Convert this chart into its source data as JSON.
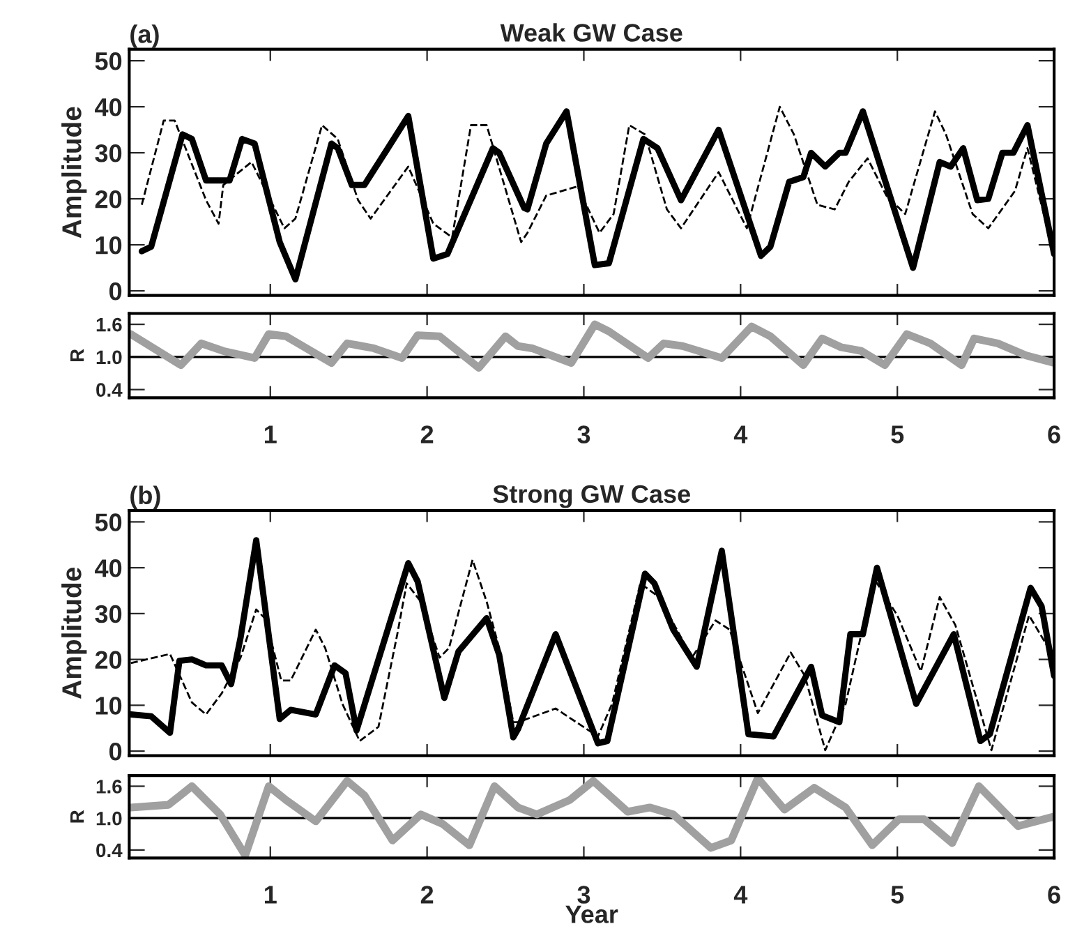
{
  "chart_data": [
    {
      "type": "line",
      "title": "Weak GW Case",
      "ylabel": "Amplitude",
      "annotations": [
        "(a)"
      ],
      "xlim": [
        0.1,
        6
      ],
      "xticks": [
        1,
        2,
        3,
        4,
        5,
        6
      ],
      "ylim": [
        -1,
        52.5
      ],
      "yticks": [
        0,
        10,
        20,
        30,
        40,
        50
      ],
      "tick_labels": "y",
      "series": [
        {
          "color": "#000000",
          "line_style": "solid",
          "x": [
            0.18,
            0.24,
            0.44,
            0.5,
            0.59,
            0.74,
            0.82,
            0.9,
            1.06,
            1.16,
            1.39,
            1.43,
            1.52,
            1.6,
            1.75,
            1.88,
            2.04,
            2.13,
            2.42,
            2.46,
            2.62,
            2.64,
            2.76,
            2.89,
            3.07,
            3.16,
            3.38,
            3.47,
            3.62,
            3.86,
            4.13,
            4.19,
            4.31,
            4.4,
            4.45,
            4.54,
            4.63,
            4.67,
            4.78,
            5.1,
            5.27,
            5.34,
            5.42,
            5.51,
            5.58,
            5.67,
            5.74,
            5.83,
            6.0
          ],
          "values": [
            8.6,
            9.6,
            34,
            33,
            24,
            24,
            33,
            32,
            10.6,
            2.5,
            32,
            31,
            23,
            23,
            31,
            38,
            7,
            8,
            31,
            30,
            18,
            17.7,
            32,
            39,
            5.6,
            6,
            33,
            31,
            19.7,
            35,
            7.6,
            9.6,
            23.7,
            24.7,
            30,
            27,
            30,
            30,
            39,
            5,
            28,
            27,
            31,
            19.7,
            20,
            30,
            30,
            36,
            8
          ]
        },
        {
          "color": "#000000",
          "line_style": "dashed",
          "x": [
            0.18,
            0.32,
            0.39,
            0.59,
            0.67,
            0.7,
            0.88,
            1.09,
            1.16,
            1.33,
            1.43,
            1.56,
            1.64,
            1.88,
            2.04,
            2.16,
            2.28,
            2.38,
            2.6,
            2.64,
            2.76,
            2.96,
            3.1,
            3.19,
            3.29,
            3.39,
            3.53,
            3.62,
            3.86,
            4.04,
            4.25,
            4.34,
            4.49,
            4.6,
            4.69,
            4.81,
            4.93,
            5.05,
            5.24,
            5.31,
            5.48,
            5.58,
            5.75,
            5.83,
            6.0
          ],
          "values": [
            18.7,
            37,
            37,
            19.7,
            14.6,
            23,
            28,
            13.6,
            15.7,
            36,
            33,
            19.7,
            15.7,
            27,
            14.6,
            11.6,
            36,
            36,
            10.6,
            12.6,
            20.7,
            22.7,
            12.6,
            16.7,
            36,
            34,
            17.7,
            13.6,
            25.8,
            13.6,
            40,
            34,
            18.7,
            17.7,
            23.7,
            28.8,
            20.7,
            16.7,
            39,
            34,
            16.7,
            13.6,
            21.7,
            31,
            7.6
          ]
        }
      ]
    },
    {
      "type": "line",
      "ylabel": "R",
      "xlim": [
        0.1,
        6
      ],
      "xticks": [
        1,
        2,
        3,
        4,
        5,
        6
      ],
      "ylim": [
        0.25,
        1.8
      ],
      "yticks": [
        0.4,
        {
          "value": 1.0,
          "label": "1.0"
        },
        1.6
      ],
      "ref_lines": [
        {
          "axis": "y",
          "value": 1.0,
          "color": "#000000"
        }
      ],
      "series": [
        {
          "color": "#a0a0a0",
          "line_style": "solid",
          "x": [
            0.11,
            0.43,
            0.56,
            0.7,
            0.9,
            0.99,
            1.1,
            1.39,
            1.49,
            1.66,
            1.84,
            1.94,
            2.08,
            2.33,
            2.5,
            2.58,
            2.67,
            2.92,
            3.07,
            3.16,
            3.41,
            3.51,
            3.63,
            3.88,
            4.07,
            4.19,
            4.4,
            4.52,
            4.64,
            4.77,
            4.92,
            5.06,
            5.21,
            5.41,
            5.49,
            5.64,
            5.82,
            6.0
          ],
          "values": [
            1.42,
            0.85,
            1.25,
            1.11,
            0.98,
            1.42,
            1.38,
            0.89,
            1.25,
            1.16,
            0.98,
            1.4,
            1.38,
            0.8,
            1.38,
            1.2,
            1.16,
            0.89,
            1.6,
            1.47,
            0.98,
            1.25,
            1.2,
            0.98,
            1.56,
            1.38,
            0.85,
            1.34,
            1.18,
            1.11,
            0.85,
            1.42,
            1.25,
            0.85,
            1.34,
            1.25,
            1.03,
            0.89
          ]
        }
      ]
    },
    {
      "type": "line",
      "title": "Strong GW Case",
      "ylabel": "Amplitude",
      "annotations": [
        "(b)"
      ],
      "xlim": [
        0.1,
        6
      ],
      "xticks": [
        1,
        2,
        3,
        4,
        5,
        6
      ],
      "ylim": [
        -1,
        52.5
      ],
      "yticks": [
        0,
        10,
        20,
        30,
        40,
        50
      ],
      "tick_labels": "y",
      "series": [
        {
          "color": "#000000",
          "line_style": "solid",
          "x": [
            0.11,
            0.24,
            0.36,
            0.42,
            0.5,
            0.59,
            0.69,
            0.75,
            0.81,
            0.91,
            1.06,
            1.13,
            1.29,
            1.41,
            1.48,
            1.55,
            1.88,
            1.94,
            2.11,
            2.2,
            2.38,
            2.46,
            2.55,
            2.58,
            2.82,
            3.09,
            3.15,
            3.39,
            3.45,
            3.57,
            3.72,
            3.88,
            4.05,
            4.21,
            4.45,
            4.52,
            4.63,
            4.7,
            4.78,
            4.87,
            5.12,
            5.36,
            5.53,
            5.59,
            5.85,
            5.92,
            6.0
          ],
          "values": [
            8,
            7.6,
            4,
            19.7,
            20,
            18.7,
            18.7,
            14.6,
            24.7,
            46,
            7,
            9,
            8,
            18.7,
            17,
            4.5,
            41,
            37,
            11.6,
            21.7,
            29,
            21,
            3,
            4.8,
            25.5,
            1.7,
            2.2,
            38.7,
            36.6,
            26.5,
            18.4,
            43.7,
            3.7,
            3.2,
            18.4,
            7.8,
            6.3,
            25.5,
            25.5,
            40,
            10.3,
            25.5,
            2.2,
            3.7,
            35.6,
            31.6,
            16.4
          ]
        },
        {
          "color": "#000000",
          "line_style": "dashed",
          "x": [
            0.11,
            0.36,
            0.5,
            0.59,
            0.69,
            0.81,
            0.91,
            0.97,
            1.07,
            1.13,
            1.29,
            1.35,
            1.46,
            1.57,
            1.69,
            1.81,
            1.87,
            1.96,
            2.08,
            2.14,
            2.29,
            2.38,
            2.46,
            2.55,
            2.58,
            2.82,
            3.09,
            3.18,
            3.36,
            3.48,
            3.69,
            3.84,
            3.93,
            4.11,
            4.32,
            4.41,
            4.54,
            4.67,
            4.85,
            5.0,
            5.15,
            5.27,
            5.37,
            5.6,
            5.84,
            6.0
          ],
          "values": [
            19.2,
            21.2,
            10.6,
            8,
            12.6,
            20.4,
            30.9,
            28.8,
            15.4,
            15.4,
            26.5,
            22.5,
            10.3,
            2.2,
            5.3,
            25.5,
            36.6,
            32.6,
            20.4,
            22.5,
            41.7,
            32.6,
            22.5,
            6.3,
            6.3,
            9.3,
            3.2,
            10.3,
            36.6,
            33.6,
            20.4,
            28.5,
            26.5,
            8.3,
            21.5,
            16.4,
            0.2,
            10.3,
            37.7,
            29.6,
            17.4,
            33.6,
            27.5,
            0.2,
            29.6,
            20.4
          ]
        }
      ]
    },
    {
      "type": "line",
      "ylabel": "R",
      "xlabel": "Year",
      "xlim": [
        0.1,
        6
      ],
      "xticks": [
        1,
        2,
        3,
        4,
        5,
        6
      ],
      "ylim": [
        0.25,
        1.8
      ],
      "yticks": [
        0.4,
        {
          "value": 1.0,
          "label": "1.0"
        },
        1.6
      ],
      "ref_lines": [
        {
          "axis": "y",
          "value": 1.0,
          "color": "#000000"
        }
      ],
      "series": [
        {
          "color": "#a0a0a0",
          "line_style": "solid",
          "x": [
            0.11,
            0.35,
            0.5,
            0.68,
            0.84,
            0.99,
            1.1,
            1.29,
            1.49,
            1.6,
            1.78,
            1.96,
            2.1,
            2.27,
            2.43,
            2.58,
            2.7,
            2.91,
            3.06,
            3.28,
            3.42,
            3.57,
            3.81,
            3.94,
            4.11,
            4.28,
            4.47,
            4.67,
            4.84,
            5.01,
            5.17,
            5.35,
            5.52,
            5.77,
            6.0
          ],
          "values": [
            1.2,
            1.25,
            1.6,
            1.07,
            0.3,
            1.6,
            1.34,
            0.94,
            1.7,
            1.43,
            0.58,
            1.07,
            0.89,
            0.49,
            1.6,
            1.2,
            1.07,
            1.34,
            1.7,
            1.12,
            1.2,
            1.07,
            0.44,
            0.58,
            1.75,
            1.16,
            1.57,
            1.2,
            0.49,
            0.98,
            0.98,
            0.53,
            1.6,
            0.85,
            1.03
          ]
        }
      ]
    }
  ]
}
